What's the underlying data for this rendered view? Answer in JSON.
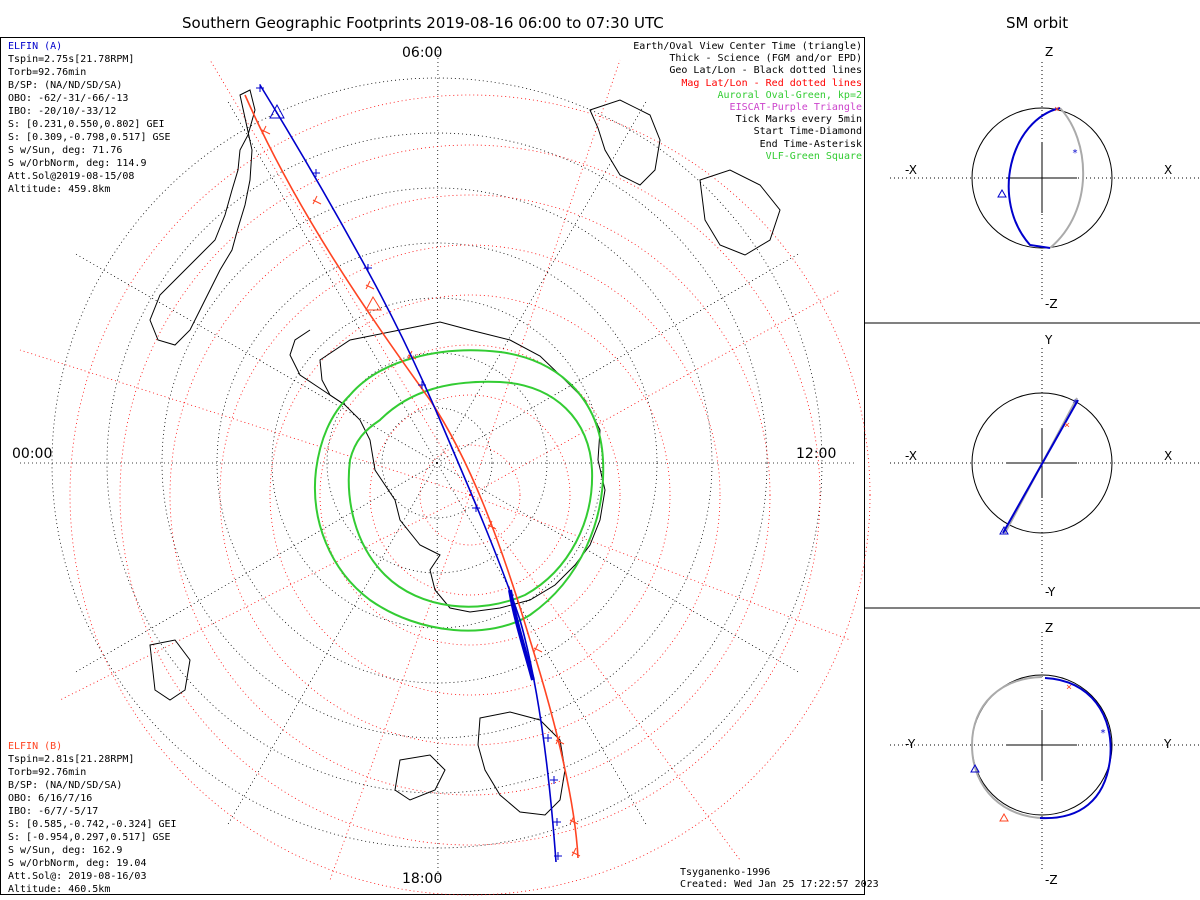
{
  "main_title": "Southern Geographic Footprints 2019-08-16 06:00 to 07:30 UTC",
  "right_title": "SM orbit",
  "clock_labels": {
    "top": "06:00",
    "left": "00:00",
    "right": "12:00",
    "bottom": "18:00"
  },
  "elfin_a": {
    "name": "ELFIN (A)",
    "color": "#0000cc",
    "lines": [
      "Tspin=2.75s[21.78RPM]",
      "Torb=92.76min",
      "B/SP: (NA/ND/SD/SA)",
      "OBO: -62/-31/-66/-13",
      "IBO: -20/10/-33/12",
      "S: [0.231,0.550,0.802] GEI",
      "S: [0.309,-0.798,0.517] GSE",
      "S w/Sun, deg: 71.76",
      "S w/OrbNorm, deg: 114.9",
      "Att.Sol@2019-08-15/08",
      "Altitude: 459.8km"
    ]
  },
  "elfin_b": {
    "name": "ELFIN (B)",
    "color": "#ff4422",
    "lines": [
      "Tspin=2.81s[21.28RPM]",
      "Torb=92.76min",
      "B/SP: (NA/ND/SD/SA)",
      "OBO: 6/16/7/16",
      "IBO: -6/7/-5/17",
      "S: [0.585,-0.742,-0.324] GEI",
      "S: [-0.954,0.297,0.517] GSE",
      "S w/Sun, deg: 162.9",
      "S w/OrbNorm, deg: 19.04",
      "Att.Sol@: 2019-08-16/03",
      "Altitude: 460.5km"
    ]
  },
  "legend": [
    {
      "text": "Earth/Oval View Center Time (triangle)",
      "color": "#000000"
    },
    {
      "text": "Thick - Science (FGM and/or EPD)",
      "color": "#000000"
    },
    {
      "text": "Geo Lat/Lon - Black dotted lines",
      "color": "#000000"
    },
    {
      "text": "Mag Lat/Lon - Red dotted lines",
      "color": "#ff0000"
    },
    {
      "text": "Auroral Oval-Green, kp=2",
      "color": "#33cc33"
    },
    {
      "text": "EISCAT-Purple Triangle",
      "color": "#cc44cc"
    },
    {
      "text": "Tick Marks every 5min",
      "color": "#000000"
    },
    {
      "text": "Start Time-Diamond",
      "color": "#000000"
    },
    {
      "text": "End Time-Asterisk",
      "color": "#000000"
    },
    {
      "text": "VLF-Green Square",
      "color": "#33cc33"
    }
  ],
  "footer": {
    "model": "Tsyganenko-1996",
    "created": "Created: Wed Jan 25 17:22:57 2023"
  },
  "sm_panels": [
    {
      "top": "Z",
      "bottom": "-Z",
      "left": "-X",
      "right": "X"
    },
    {
      "top": "Y",
      "bottom": "-Y",
      "left": "-X",
      "right": "X"
    },
    {
      "top": "Z",
      "bottom": "-Z",
      "left": "-Y",
      "right": "Y"
    }
  ],
  "colors": {
    "elfin_a": "#0000cc",
    "elfin_b": "#ff4422",
    "oval": "#33cc33",
    "orbit_shadow": "#aaaaaa"
  }
}
